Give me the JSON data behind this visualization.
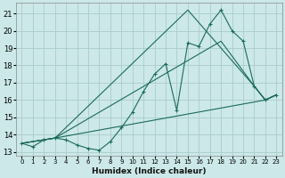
{
  "xlabel": "Humidex (Indice chaleur)",
  "bg_color": "#cce8e8",
  "grid_color": "#aacccc",
  "line_color": "#1a6b5a",
  "xlim": [
    -0.5,
    23.5
  ],
  "ylim": [
    12.8,
    21.6
  ],
  "xticks": [
    0,
    1,
    2,
    3,
    4,
    5,
    6,
    7,
    8,
    9,
    10,
    11,
    12,
    13,
    14,
    15,
    16,
    17,
    18,
    19,
    20,
    21,
    22,
    23
  ],
  "yticks": [
    13,
    14,
    15,
    16,
    17,
    18,
    19,
    20,
    21
  ],
  "series1_x": [
    0,
    1,
    2,
    3,
    4,
    5,
    6,
    7,
    8,
    9,
    10,
    11,
    12,
    13,
    14,
    15,
    16,
    17,
    18,
    19,
    20,
    21,
    22,
    23
  ],
  "series1_y": [
    13.5,
    13.3,
    13.7,
    13.8,
    13.7,
    13.4,
    13.2,
    13.1,
    13.6,
    14.4,
    15.3,
    16.5,
    17.5,
    18.1,
    15.4,
    19.3,
    19.1,
    20.4,
    21.2,
    20.0,
    19.4,
    16.8,
    16.0,
    16.3
  ],
  "series2_x": [
    0,
    3,
    22,
    23
  ],
  "series2_y": [
    13.5,
    13.8,
    16.0,
    16.3
  ],
  "series3_x": [
    0,
    3,
    15,
    21,
    22,
    23
  ],
  "series3_y": [
    13.5,
    13.8,
    21.2,
    16.8,
    16.0,
    16.3
  ],
  "series4_x": [
    0,
    3,
    18,
    21,
    22,
    23
  ],
  "series4_y": [
    13.5,
    13.8,
    19.4,
    16.8,
    16.0,
    16.3
  ]
}
